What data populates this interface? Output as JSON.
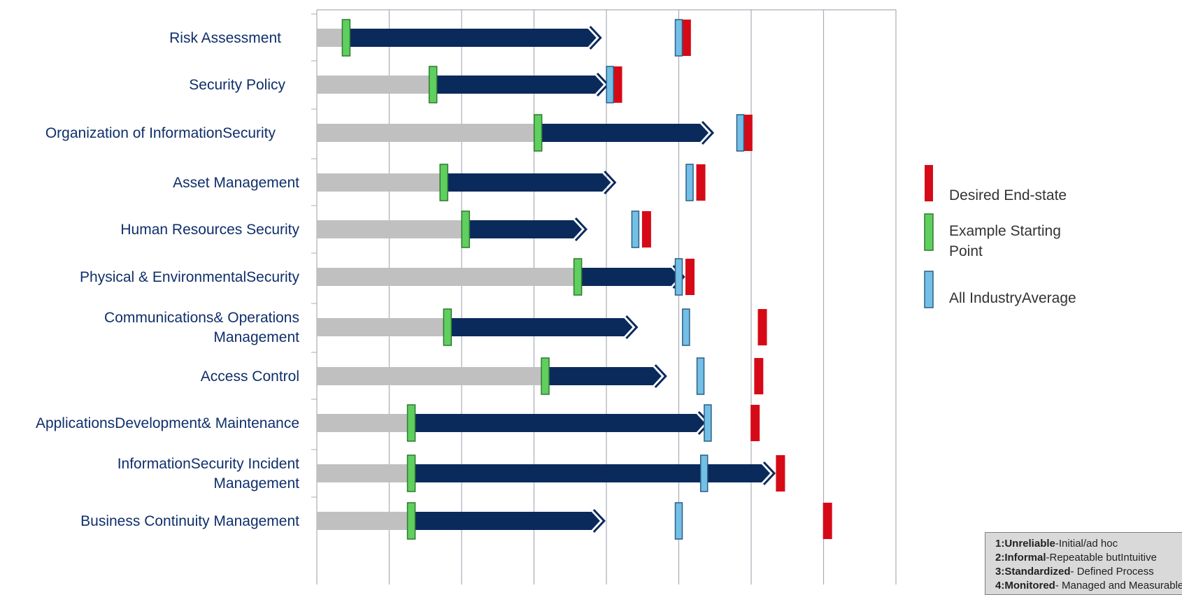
{
  "chart_data": {
    "type": "bar",
    "categories": [
      "Risk Assessment",
      "Security Policy",
      "Organization of InformationSecurity",
      "Asset Management",
      "Human Resources Security",
      "Physical & EnvironmentalSecurity",
      "Communications& Operations Management",
      "Access Control",
      "ApplicationsDevelopment& Maintenance",
      "InformationSecurity Incident Management",
      "Business Continuity Management"
    ],
    "category_lines": [
      [
        "Risk Assessment"
      ],
      [
        "Security Policy"
      ],
      [
        "Organization of InformationSecurity"
      ],
      [
        "Asset Management"
      ],
      [
        "Human Resources Security"
      ],
      [
        "Physical & EnvironmentalSecurity"
      ],
      [
        "Communications& Operations",
        "Management"
      ],
      [
        "Access Control"
      ],
      [
        "ApplicationsDevelopment& Maintenance"
      ],
      [
        "InformationSecurity Incident",
        "Management"
      ],
      [
        "Business Continuity Management"
      ]
    ],
    "xlim": [
      0,
      8
    ],
    "grid": true,
    "series": [
      {
        "name": "Example Starting Point",
        "values": [
          0.4,
          1.6,
          3.05,
          1.75,
          2.05,
          3.6,
          1.8,
          3.15,
          1.3,
          1.3,
          1.3
        ]
      },
      {
        "name": "All IndustryAverage",
        "values": [
          5.0,
          4.05,
          5.85,
          5.15,
          4.4,
          5.0,
          5.1,
          5.3,
          5.4,
          5.35,
          5.0
        ]
      },
      {
        "name": "Desired End-state",
        "values": [
          5.1,
          4.15,
          5.95,
          5.3,
          4.55,
          5.15,
          6.15,
          6.1,
          6.05,
          6.4,
          7.05
        ]
      }
    ],
    "arrow_end": [
      3.9,
      4.0,
      5.45,
      4.1,
      3.7,
      5.05,
      4.4,
      4.8,
      5.4,
      6.3,
      3.95
    ],
    "legend": {
      "placement": "right"
    },
    "scale_notes": [
      {
        "bold": "1:Unreliable",
        "text": "-Initial/ad hoc"
      },
      {
        "bold": "2:Informal",
        "text": "-Repeatable butIntuitive"
      },
      {
        "bold": "3:Standardized",
        "text": "- Defined Process"
      },
      {
        "bold": "4:Monitored",
        "text": "- Managed and Measurable"
      }
    ]
  },
  "colors": {
    "progress_arrow": "#0b2a5c",
    "baseline_bar": "#c0c0c0",
    "starting_point": "#5fcf5f",
    "industry_average": "#74bfe6",
    "desired_end_state": "#d60a17",
    "label_text": "#0f2f6b"
  }
}
